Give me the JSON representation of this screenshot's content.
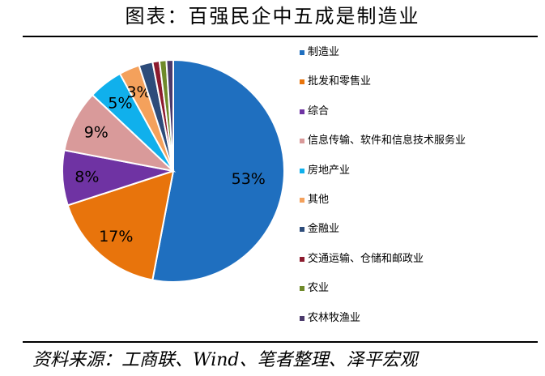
{
  "title": "图表：百强民企中五成是制造业",
  "source": "资料来源：工商联、Wind、笔者整理、泽平宏观",
  "chart_data": {
    "type": "pie",
    "slices": [
      {
        "name": "制造业",
        "value": 53,
        "label": "53%",
        "color": "#1f6fbf"
      },
      {
        "name": "批发和零售业",
        "value": 17,
        "label": "17%",
        "color": "#e8740c"
      },
      {
        "name": "综合",
        "value": 8,
        "label": "8%",
        "color": "#6f33a3"
      },
      {
        "name": "信息传输、软件和信息技术服务业",
        "value": 9,
        "label": "9%",
        "color": "#d99a9a"
      },
      {
        "name": "房地产业",
        "value": 5,
        "label": "5%",
        "color": "#10b0ec"
      },
      {
        "name": "其他",
        "value": 3,
        "label": "3%",
        "color": "#f4a15c"
      },
      {
        "name": "金融业",
        "value": 2,
        "label": "",
        "color": "#2d4c7a"
      },
      {
        "name": "交通运输、仓储和邮政业",
        "value": 1,
        "label": "",
        "color": "#8c1b2e"
      },
      {
        "name": "农业",
        "value": 1,
        "label": "",
        "color": "#6f8a2a"
      },
      {
        "name": "农林牧渔业",
        "value": 1,
        "label": "",
        "color": "#4b3a6b"
      }
    ]
  }
}
